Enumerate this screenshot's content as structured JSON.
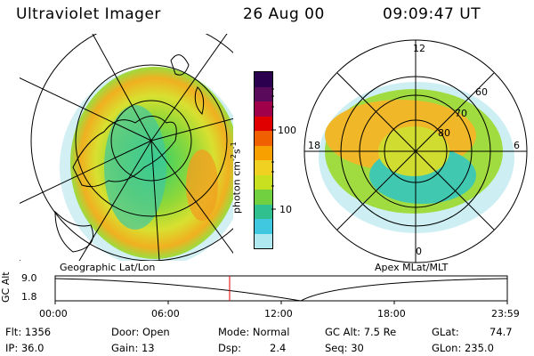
{
  "header": {
    "instrument": "Ultraviolet Imager",
    "date": "26 Aug 00",
    "time": "09:09:47 UT"
  },
  "left_panel": {
    "caption": "Geographic Lat/Lon"
  },
  "right_panel": {
    "caption": "Apex MLat/MLT",
    "mlt_labels": [
      "12",
      "18",
      "6",
      "0"
    ],
    "lat_labels": [
      "60",
      "70",
      "80"
    ]
  },
  "colorbar": {
    "unit": "photon cm",
    "unit_exp1": "-2",
    "unit_mid": "s",
    "unit_exp2": "-1",
    "tick_labels": [
      "100",
      "10"
    ],
    "colors": [
      "#2b004f",
      "#5a0a5a",
      "#a0004a",
      "#e00000",
      "#f06000",
      "#f8a000",
      "#f0d020",
      "#c8e020",
      "#70d040",
      "#30c090",
      "#40c8e0",
      "#b0e8f0"
    ]
  },
  "altitude_plot": {
    "ylabel": "GC Alt",
    "yticks": [
      "9.0",
      "1.8"
    ],
    "xticks": [
      "00:00",
      "06:00",
      "12:00",
      "18:00",
      "23:59"
    ],
    "marker_color": "#e00000"
  },
  "info": {
    "flt": "Flt: 1356",
    "ip": "IP: 36.0",
    "door": "Door: Open",
    "gain": "Gain: 13",
    "mode": "Mode: Normal",
    "dsp": "Dsp:",
    "dsp_val": "2.4",
    "gc_alt": "GC Alt: 7.5 Re",
    "seq": "Seq: 30",
    "glat": "GLat:",
    "glat_val": "74.7",
    "glon": "GLon: 235.0"
  }
}
